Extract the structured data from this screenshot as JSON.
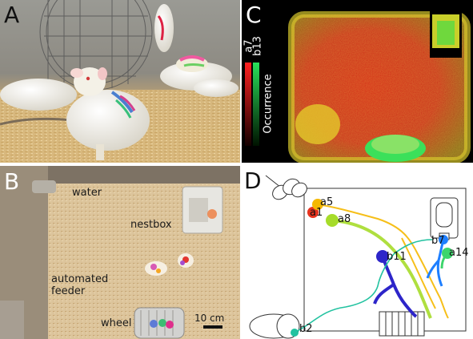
{
  "panels": {
    "a": {
      "letter": "A"
    },
    "b": {
      "letter": "B",
      "labels": {
        "water": "water",
        "nestbox": "nestbox",
        "feeder": "automated\nfeeder",
        "wheel": "wheel",
        "scale": "10 cm"
      }
    },
    "c": {
      "letter": "C",
      "legend": {
        "top_a": "a7",
        "top_b": "b13",
        "side": "Occurrence"
      },
      "colors": {
        "a": "#ff2a2a",
        "b": "#29e05a"
      }
    },
    "d": {
      "letter": "D",
      "labels": {
        "a5": "a5",
        "a1": "a1",
        "a8": "a8",
        "b7": "b7",
        "a14": "a14",
        "b11": "b11",
        "b2": "b2"
      },
      "colors": {
        "a1": "#e8331e",
        "a5": "#f5b800",
        "a8": "#a6dc2a",
        "b7": "#1e7fff",
        "a14": "#3cd56c",
        "b11": "#2d25c9",
        "b2": "#22c2a0"
      }
    }
  }
}
